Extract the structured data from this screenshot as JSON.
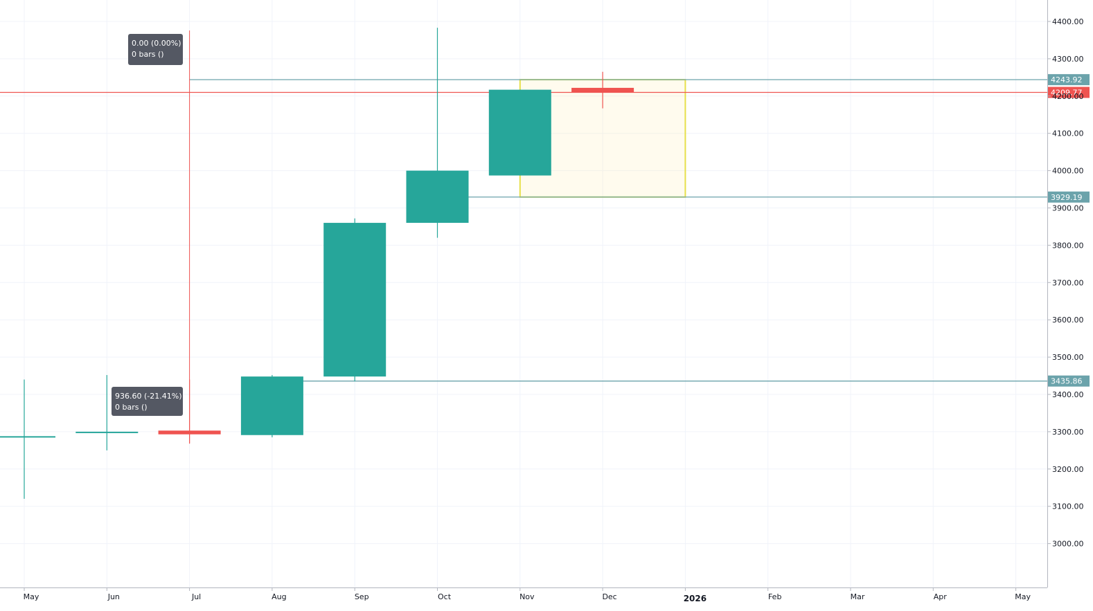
{
  "chart_data": {
    "type": "candlestick",
    "title": "",
    "xlabel": "",
    "ylabel": "",
    "x_ticks": [
      "May",
      "Jun",
      "Jul",
      "Aug",
      "Sep",
      "Oct",
      "Nov",
      "Dec",
      "2026",
      "Feb",
      "Mar",
      "Apr",
      "May"
    ],
    "y_ticks": [
      "3000.00",
      "3100.00",
      "3200.00",
      "3300.00",
      "3400.00",
      "3500.00",
      "3600.00",
      "3700.00",
      "3800.00",
      "3900.00",
      "4000.00",
      "4100.00",
      "4200.00",
      "4300.00",
      "4400.00"
    ],
    "ylim": [
      2900,
      4430
    ],
    "grid": true,
    "candles": [
      {
        "x": "2025-05",
        "open": 3288,
        "high": 3440,
        "low": 3120,
        "close": 3288
      },
      {
        "x": "2025-06",
        "open": 3300,
        "high": 3452,
        "low": 3250,
        "close": 3300
      },
      {
        "x": "2025-07",
        "open": 3303,
        "high": 3440,
        "low": 3268,
        "close": 3293
      },
      {
        "x": "2025-08",
        "open": 3291,
        "high": 3452,
        "low": 3285,
        "close": 3448
      },
      {
        "x": "2025-09",
        "open": 3448,
        "high": 3872,
        "low": 3435,
        "close": 3860
      },
      {
        "x": "2025-10",
        "open": 3860,
        "high": 4383,
        "low": 3820,
        "close": 4000
      },
      {
        "x": "2025-11",
        "open": 3987,
        "high": 4217,
        "low": 3987,
        "close": 4217
      },
      {
        "x": "2025-12",
        "open": 4222,
        "high": 4265,
        "low": 4167,
        "close": 4210
      }
    ],
    "colors": {
      "up": "#26a69a",
      "down": "#ef5350"
    },
    "price_levels": [
      {
        "label": "4243.92",
        "value": 4243.92,
        "color": "#6ba3ab"
      },
      {
        "label": "4209.77",
        "value": 4209.77,
        "color": "#ef5350"
      },
      {
        "label": "3929.19",
        "value": 3929.19,
        "color": "#6ba3ab"
      },
      {
        "label": "3435.86",
        "value": 3435.86,
        "color": "#6ba3ab"
      }
    ],
    "annotations": [
      {
        "line1": "0.00 (0.00%)",
        "line2": "0 bars ()"
      },
      {
        "line1": "936.60 (-21.41%)",
        "line2": "0 bars ()"
      }
    ],
    "highlight_box": {
      "x_start": "2025-11",
      "x_end": "2026-01",
      "y_low": 3929.19,
      "y_high": 4243.92
    }
  }
}
